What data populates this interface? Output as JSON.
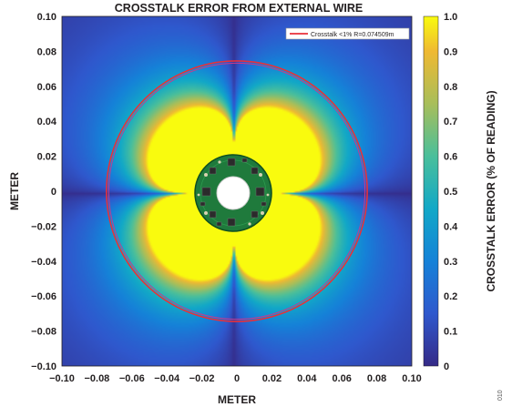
{
  "chart_data": {
    "type": "heatmap",
    "title": "CROSSTALK ERROR FROM EXTERNAL WIRE",
    "xlabel": "METER",
    "ylabel": "METER",
    "xlim": [
      -0.1,
      0.1
    ],
    "ylim": [
      -0.1,
      0.1
    ],
    "x_ticks": [
      "−0.10",
      "−0.08",
      "−0.06",
      "−0.04",
      "−0.02",
      "0",
      "0.02",
      "0.04",
      "0.06",
      "0.08",
      "0.10"
    ],
    "y_ticks": [
      "0.10",
      "0.08",
      "0.06",
      "0.04",
      "0.02",
      "0",
      "−0.02",
      "−0.04",
      "−0.06",
      "−0.08",
      "−0.10"
    ],
    "colorbar": {
      "label": "CROSSTALK ERROR (% OF READING)",
      "range": [
        0,
        1.0
      ],
      "ticks": [
        "1.0",
        "0.9",
        "0.8",
        "0.7",
        "0.6",
        "0.5",
        "0.4",
        "0.3",
        "0.2",
        "0.1",
        "0"
      ]
    },
    "pattern": "four-lobe rosette (lobes at 45°, 135°, 225°, 315°), saturated at 1.0 near center, decaying with radius",
    "threshold_circle": {
      "radius": 0.074509,
      "legend_label": "Crosstalk <1% R=0.074509m",
      "color": "#e8303a"
    },
    "sensor_board": {
      "outer_radius": 0.022,
      "inner_radius": 0.0085,
      "board_color": "#1f7a3c"
    }
  },
  "figure_id": "010"
}
